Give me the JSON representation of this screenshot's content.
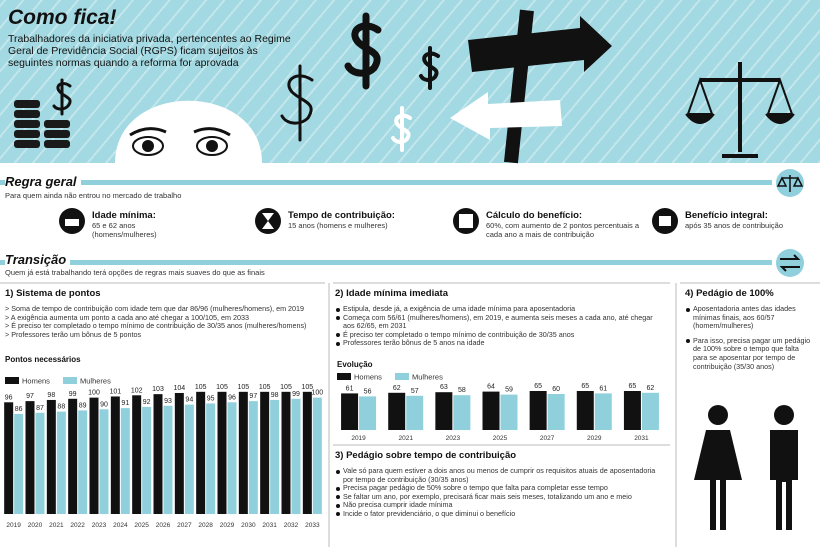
{
  "header": {
    "title": "Como fica!",
    "subtitle": "Trabalhadores da iniciativa privada, pertencentes ao Regime Geral de Previdência Social (RGPS) ficam sujeitos às seguintes normas quando a reforma for aprovada"
  },
  "regra_geral": {
    "title": "Regra geral",
    "subtitle": "Para quem ainda não entrou no mercado de trabalho",
    "items": [
      {
        "label": "Idade mínima:",
        "text": "65 e 62 anos (homens/mulheres)"
      },
      {
        "label": "Tempo de contribuição:",
        "text": "15 anos (homens e mulheres)"
      },
      {
        "label": "Cálculo do benefício:",
        "text": "60%, com aumento de 2 pontos percentuais a cada ano a mais de contribuição"
      },
      {
        "label": "Benefício integral:",
        "text": "após 35 anos de contribuição"
      }
    ]
  },
  "transicao": {
    "title": "Transição",
    "subtitle": "Quem já está trabalhando terá opções de regras mais suaves do que as finais"
  },
  "sections": [
    {
      "title": "1) Sistema de pontos",
      "bullets": [
        "> Soma de tempo de contribuição com idade tem que dar 86/96 (mulheres/homens), em 2019",
        "> A exigência aumenta um ponto a cada ano até chegar a 100/105, em 2033",
        "> É preciso ter completado o tempo mínimo de contribuição de 30/35 anos (mulheres/homens)",
        "> Professores terão um bônus de 5 pontos"
      ]
    },
    {
      "title": "2) Idade mínima imediata",
      "bullets": [
        "Estipula, desde já, a exigência de uma idade mínima para aposentadoria",
        "Começa com 56/61 (mulheres/homens), em 2019, e aumenta seis meses a cada ano, até chegar aos 62/65, em 2031",
        "É preciso ter completado o tempo mínimo de contribuição de 30/35 anos",
        "Professores terão bônus de 5 anos na idade"
      ]
    },
    {
      "title": "3) Pedágio sobre tempo de contribuição",
      "bullets": [
        "Vale só para quem estiver a dois anos ou menos de cumprir os requisitos atuais de aposentadoria por tempo de contribuição (30/35 anos)",
        "Precisa pagar pedágio de 50% sobre o tempo que falta para completar esse tempo",
        "Se faltar um ano, por exemplo, precisará ficar mais seis meses, totalizando um ano e meio",
        "Não precisa cumprir idade mínima",
        "Incide o fator previdenciário, o que diminui o benefício"
      ]
    },
    {
      "title": "4) Pedágio de 100%",
      "bullets": [
        "Aposentadoria antes das idades mínimas finais, aos 60/57 (homem/mulheres)",
        "Para isso, precisa pagar um pedágio de 100% sobre o tempo que falta para se aposentar por tempo de contribuição (35/30 anos)"
      ]
    }
  ],
  "chart_data": [
    {
      "type": "bar",
      "title": "Pontos necessários",
      "categories": [
        "2019",
        "2020",
        "2021",
        "2022",
        "2023",
        "2024",
        "2025",
        "2026",
        "2027",
        "2028",
        "2029",
        "2030",
        "2031",
        "2032",
        "2033"
      ],
      "series": [
        {
          "name": "Homens",
          "color": "#111111",
          "values": [
            96,
            97,
            98,
            99,
            100,
            101,
            102,
            103,
            104,
            105,
            105,
            105,
            105,
            105,
            105
          ]
        },
        {
          "name": "Mulheres",
          "color": "#8fd0dc",
          "values": [
            86,
            87,
            88,
            89,
            90,
            91,
            92,
            93,
            94,
            95,
            96,
            97,
            98,
            99,
            100
          ]
        }
      ],
      "ylim": [
        0,
        110
      ]
    },
    {
      "type": "bar",
      "title": "Evolução",
      "categories": [
        "2019",
        "2021",
        "2023",
        "2025",
        "2027",
        "2029",
        "2031"
      ],
      "series": [
        {
          "name": "Homens",
          "color": "#111111",
          "values": [
            61,
            62,
            63,
            64,
            65,
            65,
            65
          ]
        },
        {
          "name": "Mulheres",
          "color": "#8fd0dc",
          "values": [
            56,
            57,
            58,
            59,
            60,
            61,
            62
          ]
        }
      ],
      "ylim": [
        0,
        70
      ]
    }
  ]
}
